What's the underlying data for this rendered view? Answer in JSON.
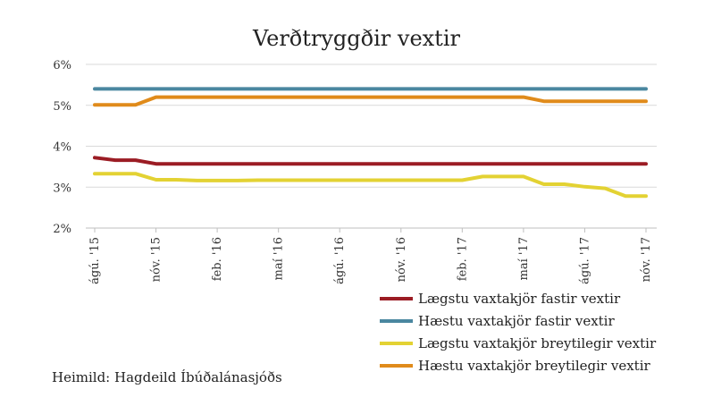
{
  "chart_data": {
    "type": "line",
    "title": "Verðtryggðir vextir",
    "source": "Heimild: Hagdeild Íbúðalánasjóðs",
    "ylim": [
      2,
      6
    ],
    "y_ticks": [
      "2%",
      "3%",
      "4%",
      "5%",
      "6%"
    ],
    "x_tick_labels": [
      "ágú. '15",
      "nóv. '15",
      "feb. '16",
      "maí '16",
      "ágú. '16",
      "nóv. '16",
      "feb. '17",
      "maí '17",
      "ágú. '17",
      "nóv. '17"
    ],
    "x": [
      "ágú. '15",
      "sep. '15",
      "okt. '15",
      "nóv. '15",
      "des. '15",
      "jan. '16",
      "feb. '16",
      "mar. '16",
      "apr. '16",
      "maí '16",
      "jún. '16",
      "júl. '16",
      "ágú. '16",
      "sep. '16",
      "okt. '16",
      "nóv. '16",
      "des. '16",
      "jan. '17",
      "feb. '17",
      "mar. '17",
      "apr. '17",
      "maí '17",
      "jún. '17",
      "júl. '17",
      "ágú. '17",
      "sep. '17",
      "okt. '17",
      "nóv. '17"
    ],
    "grid": true,
    "series": [
      {
        "name": "Lægstu vaxtakjör fastir vextir",
        "color": "#9b1c24",
        "values": [
          3.72,
          3.66,
          3.66,
          3.57,
          3.57,
          3.57,
          3.57,
          3.57,
          3.57,
          3.57,
          3.57,
          3.57,
          3.57,
          3.57,
          3.57,
          3.57,
          3.57,
          3.57,
          3.57,
          3.57,
          3.57,
          3.57,
          3.57,
          3.57,
          3.57,
          3.57,
          3.57,
          3.57
        ]
      },
      {
        "name": "Hæstu vaxtakjör fastir vextir",
        "color": "#4a87a0",
        "values": [
          5.4,
          5.4,
          5.4,
          5.4,
          5.4,
          5.4,
          5.4,
          5.4,
          5.4,
          5.4,
          5.4,
          5.4,
          5.4,
          5.4,
          5.4,
          5.4,
          5.4,
          5.4,
          5.4,
          5.4,
          5.4,
          5.4,
          5.4,
          5.4,
          5.4,
          5.4,
          5.4,
          5.4
        ]
      },
      {
        "name": "Lægstu vaxtakjör breytilegir vextir",
        "color": "#e3d233",
        "values": [
          3.33,
          3.33,
          3.33,
          3.18,
          3.18,
          3.16,
          3.16,
          3.16,
          3.17,
          3.17,
          3.17,
          3.17,
          3.17,
          3.17,
          3.17,
          3.17,
          3.17,
          3.17,
          3.17,
          3.26,
          3.26,
          3.26,
          3.07,
          3.07,
          3.01,
          2.97,
          2.78,
          2.78
        ]
      },
      {
        "name": "Hæstu vaxtakjör breytilegir vextir",
        "color": "#e08b1b",
        "values": [
          5.01,
          5.01,
          5.01,
          5.2,
          5.2,
          5.2,
          5.2,
          5.2,
          5.2,
          5.2,
          5.2,
          5.2,
          5.2,
          5.2,
          5.2,
          5.2,
          5.2,
          5.2,
          5.2,
          5.2,
          5.2,
          5.2,
          5.1,
          5.1,
          5.1,
          5.1,
          5.1,
          5.1
        ]
      }
    ]
  }
}
